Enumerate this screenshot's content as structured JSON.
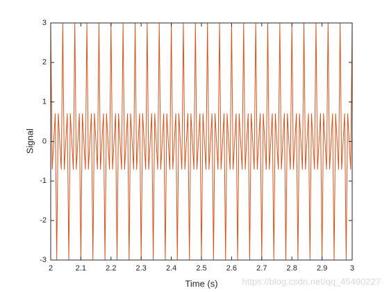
{
  "chart_data": {
    "type": "line",
    "xlabel": "Time (s)",
    "ylabel": "Signal",
    "watermark": "https://blog.csdn.net/qq_45490227",
    "color": "#d95319",
    "xlim": [
      2,
      3
    ],
    "xticks": [
      2,
      2.1,
      2.2,
      2.3,
      2.4,
      2.5,
      2.6,
      2.7,
      2.8,
      2.9,
      3
    ],
    "ylim": [
      -3,
      3
    ],
    "yticks": [
      -3,
      -2,
      -1,
      0,
      1,
      2,
      3
    ],
    "x": [
      2,
      2.005,
      2.01,
      2.015,
      2.02,
      2.025,
      2.03,
      2.035,
      2.04,
      2.045,
      2.05,
      2.055,
      2.06,
      2.065,
      2.07,
      2.075,
      2.08,
      2.085,
      2.09,
      2.095,
      2.1,
      2.105,
      2.11,
      2.115,
      2.12,
      2.125,
      2.13,
      2.135,
      2.14,
      2.145,
      2.15,
      2.155,
      2.16,
      2.165,
      2.17,
      2.175,
      2.18,
      2.185,
      2.19,
      2.195,
      2.2,
      2.205,
      2.21,
      2.215,
      2.22,
      2.225,
      2.23,
      2.235,
      2.24,
      2.245,
      2.25,
      2.255,
      2.26,
      2.265,
      2.27,
      2.275,
      2.28,
      2.285,
      2.29,
      2.295,
      2.3,
      2.305,
      2.31,
      2.315,
      2.32,
      2.325,
      2.33,
      2.335,
      2.34,
      2.345,
      2.35,
      2.355,
      2.36,
      2.365,
      2.37,
      2.375,
      2.38,
      2.385,
      2.39,
      2.395,
      2.4,
      2.405,
      2.41,
      2.415,
      2.42,
      2.425,
      2.43,
      2.435,
      2.44,
      2.445,
      2.45,
      2.455,
      2.46,
      2.465,
      2.47,
      2.475,
      2.48,
      2.485,
      2.49,
      2.495,
      2.5,
      2.505,
      2.51,
      2.515,
      2.52,
      2.525,
      2.53,
      2.535,
      2.54,
      2.545,
      2.55,
      2.555,
      2.56,
      2.565,
      2.57,
      2.575,
      2.58,
      2.585,
      2.59,
      2.595,
      2.6,
      2.605,
      2.61,
      2.615,
      2.62,
      2.625,
      2.63,
      2.635,
      2.64,
      2.645,
      2.65,
      2.655,
      2.66,
      2.665,
      2.67,
      2.675,
      2.68,
      2.685,
      2.69,
      2.695,
      2.7,
      2.705,
      2.71,
      2.715,
      2.72,
      2.725,
      2.73,
      2.735,
      2.74,
      2.745,
      2.75,
      2.755,
      2.76,
      2.765,
      2.77,
      2.775,
      2.78,
      2.785,
      2.79,
      2.795,
      2.8,
      2.805,
      2.81,
      2.815,
      2.82,
      2.825,
      2.83,
      2.835,
      2.84,
      2.845,
      2.85,
      2.855,
      2.86,
      2.865,
      2.87,
      2.875,
      2.88,
      2.885,
      2.89,
      2.895,
      2.9,
      2.905,
      2.91,
      2.915,
      2.92,
      2.925,
      2.93,
      2.935,
      2.94,
      2.945,
      2.95,
      2.955,
      2.96,
      2.965,
      2.97,
      2.975,
      2.98,
      2.985,
      2.99,
      2.995,
      3
    ],
    "values": [
      3,
      -0.71,
      0,
      0.71,
      -3,
      0.71,
      0,
      -0.71,
      3,
      -0.71,
      0,
      0.71,
      -3,
      0.71,
      0,
      -0.71,
      3,
      -0.71,
      0,
      0.71,
      -3,
      0.71,
      0,
      -0.71,
      3,
      -0.71,
      0,
      0.71,
      -3,
      0.71,
      0,
      -0.71,
      3,
      -0.71,
      0,
      0.71,
      -3,
      0.71,
      0,
      -0.71,
      3,
      -0.71,
      0,
      0.71,
      -3,
      0.71,
      0,
      -0.71,
      3,
      -0.71,
      0,
      0.71,
      -3,
      0.71,
      0,
      -0.71,
      3,
      -0.71,
      0,
      0.71,
      -3,
      0.71,
      0,
      -0.71,
      3,
      -0.71,
      0,
      0.71,
      -3,
      0.71,
      0,
      -0.71,
      3,
      -0.71,
      0,
      0.71,
      -3,
      0.71,
      0,
      -0.71,
      3,
      -0.71,
      0,
      0.71,
      -3,
      0.71,
      0,
      -0.71,
      3,
      -0.71,
      0,
      0.71,
      -3,
      0.71,
      0,
      -0.71,
      3,
      -0.71,
      0,
      0.71,
      -3,
      0.71,
      0,
      -0.71,
      3,
      -0.71,
      0,
      0.71,
      -3,
      0.71,
      0,
      -0.71,
      3,
      -0.71,
      0,
      0.71,
      -3,
      0.71,
      0,
      -0.71,
      3,
      -0.71,
      0,
      0.71,
      -3,
      0.71,
      0,
      -0.71,
      3,
      -0.71,
      0,
      0.71,
      -3,
      0.71,
      0,
      -0.71,
      3,
      -0.71,
      0,
      0.71,
      -3,
      0.71,
      0,
      -0.71,
      3,
      -0.71,
      0,
      0.71,
      -3,
      0.71,
      0,
      -0.71,
      3,
      -0.71,
      0,
      0.71,
      -3,
      0.71,
      0,
      -0.71,
      3,
      -0.71,
      0,
      0.71,
      -3,
      0.71,
      0,
      -0.71,
      3,
      -0.71,
      0,
      0.71,
      -3,
      0.71,
      0,
      -0.71,
      3,
      -0.71,
      0,
      0.71,
      -3,
      0.71,
      0,
      -0.71,
      3,
      -0.71,
      0,
      0.71,
      -3,
      0.71,
      0,
      -0.71,
      3,
      -0.71,
      0,
      0.71,
      -3,
      0.71,
      0,
      -0.71,
      3
    ]
  }
}
